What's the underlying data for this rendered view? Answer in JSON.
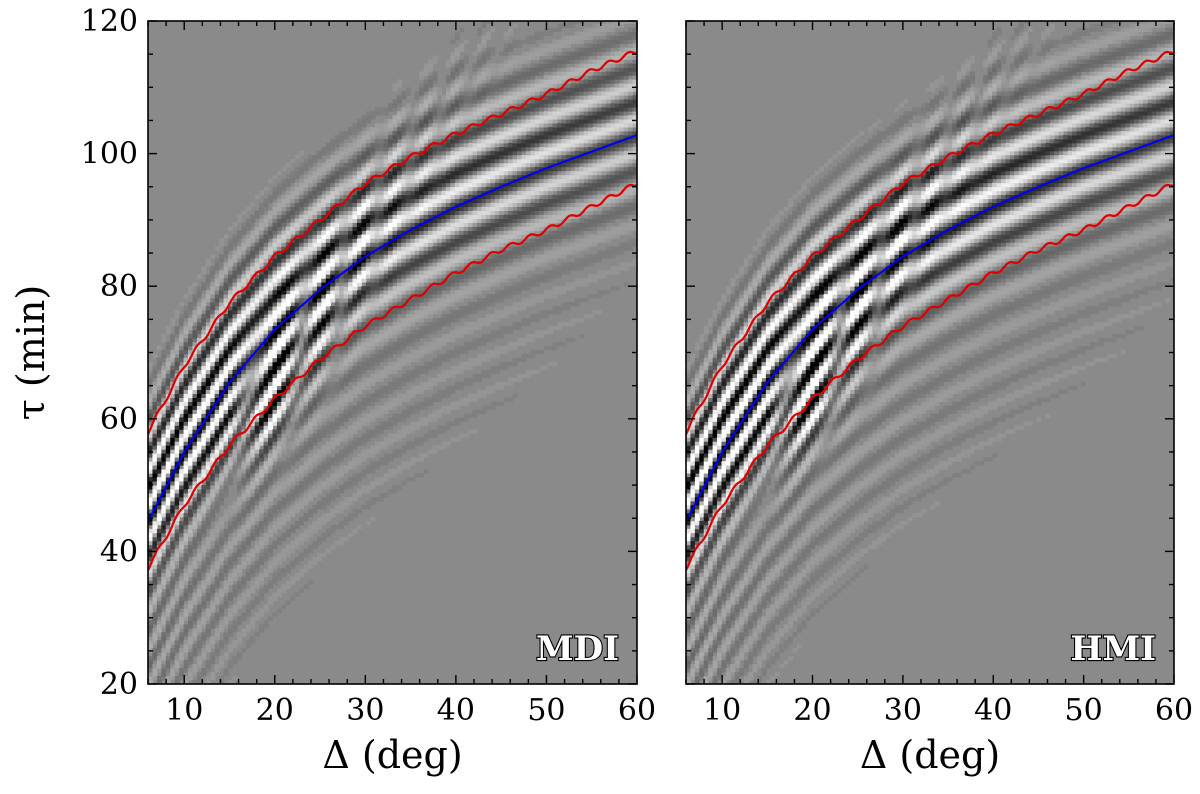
{
  "chart_data": [
    {
      "type": "heatmap",
      "panel_label": "MDI",
      "xlabel": "Δ (deg)",
      "ylabel": "τ (min)",
      "xlim": [
        6,
        60
      ],
      "ylim": [
        20,
        120
      ],
      "xticks": [
        10,
        20,
        30,
        40,
        50,
        60
      ],
      "yticks": [
        20,
        40,
        60,
        80,
        100,
        120
      ],
      "colormap": "gray",
      "series": [
        {
          "color": "#0000ff",
          "x": [
            6,
            10,
            15,
            20,
            25,
            30,
            35,
            40,
            45,
            50,
            55,
            60
          ],
          "y": [
            44.5,
            55,
            65.5,
            73.5,
            79.5,
            84.5,
            88.5,
            92,
            95,
            97.8,
            100.3,
            102.8
          ]
        },
        {
          "color": "#e00000",
          "x": [
            6,
            10,
            15,
            20,
            25,
            30,
            35,
            40,
            45,
            50,
            55,
            60
          ],
          "y": [
            58,
            68,
            77.5,
            84.5,
            90,
            95.5,
            99.5,
            103,
            106,
            109,
            112.5,
            115.5
          ]
        },
        {
          "color": "#e00000",
          "x": [
            6,
            10,
            15,
            20,
            25,
            30,
            35,
            40,
            45,
            50,
            55,
            60
          ],
          "y": [
            37.5,
            47,
            56,
            63,
            69,
            74,
            78,
            82,
            85.5,
            88.5,
            92,
            95.5
          ]
        }
      ]
    },
    {
      "type": "heatmap",
      "panel_label": "HMI",
      "xlabel": "Δ (deg)",
      "ylabel": "",
      "xlim": [
        6,
        60
      ],
      "ylim": [
        20,
        120
      ],
      "xticks": [
        10,
        20,
        30,
        40,
        50,
        60
      ],
      "yticks": [
        20,
        40,
        60,
        80,
        100,
        120
      ],
      "colormap": "gray",
      "series": [
        {
          "color": "#0000ff",
          "x": [
            6,
            10,
            15,
            20,
            25,
            30,
            35,
            40,
            45,
            50,
            55,
            60
          ],
          "y": [
            44.5,
            55,
            65.5,
            73.5,
            79.5,
            84.5,
            88.5,
            92,
            95,
            97.8,
            100.3,
            102.8
          ]
        },
        {
          "color": "#e00000",
          "x": [
            6,
            10,
            15,
            20,
            25,
            30,
            35,
            40,
            45,
            50,
            55,
            60
          ],
          "y": [
            58,
            68,
            77.5,
            84.5,
            90,
            95.5,
            99.5,
            103,
            106,
            109,
            112.5,
            115.5
          ]
        },
        {
          "color": "#e00000",
          "x": [
            6,
            10,
            15,
            20,
            25,
            30,
            35,
            40,
            45,
            50,
            55,
            60
          ],
          "y": [
            37.5,
            47,
            56,
            63,
            69,
            74,
            78,
            82,
            85.5,
            88.5,
            92,
            95.5
          ]
        }
      ]
    }
  ]
}
